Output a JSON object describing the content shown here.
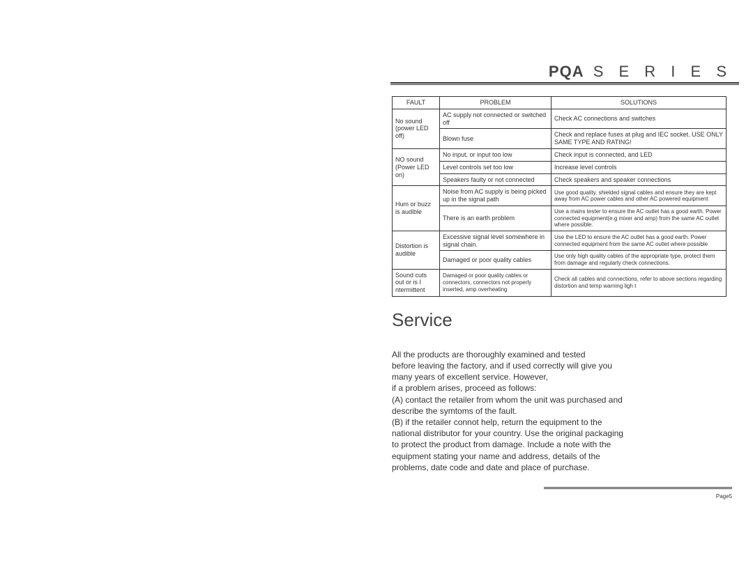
{
  "header": {
    "brand": "PQA",
    "series": "S E R I E S"
  },
  "table": {
    "headers": {
      "fault": "FAULT",
      "problem": "PROBLEM",
      "solutions": "SOLUTIONS"
    },
    "r1": {
      "fault": "No sound (power LED off)",
      "p1": "AC supply not connected or switched off",
      "s1": "Check AC connections and switches",
      "p2": "Blown fuse",
      "s2": "Check and replace fuses at plug and IEC socket. USE ONLY SAME TYPE AND RATING!"
    },
    "r2": {
      "fault": "NO sound (Power LED on)",
      "p1": "No input, or input too low",
      "s1": "Check input is connected, and LED",
      "p2": "Level controls set too low",
      "s2": "Increase level controls",
      "p3": "Speakers faulty or not connected",
      "s3": "Check speakers and speaker connections"
    },
    "r3": {
      "fault": "Hum or buzz is audible",
      "p1": "Noise from AC supply is being picked up in the signal path",
      "s1": "Use good quality, shielded signal cables and ensure they are kept away from AC power cables and other AC powered equipment",
      "p2": "There is an earth problem",
      "s2": "Use a mains tester to ensure the AC outlet has a good earth. Power connected equipment(e.g mixer and amp) from the same AC outlet where possible."
    },
    "r4": {
      "fault": "Distortion is audible",
      "p1": "Excessive signal level somewhere in signal chain.",
      "s1": "Use the LED to ensure the AC outlet has a good earth. Power connected equipment from the same AC outlet where possible",
      "p2": "Damaged or poor quality cables",
      "s2": "Use only high quality cables of the appropriate type, protect them from damage and regularly check connections."
    },
    "r5": {
      "fault": "Sound cuts out or is I ntermittent",
      "p1": "Damaged or poor quality cables or connectors, connectors not properly inserted, amp overheating",
      "s1": "Check all cables and connections, refer to above sections regarding distortion and temp warning ligh t"
    }
  },
  "service": {
    "title": "Service",
    "body": "All the products are thoroughly examined and tested\nbefore leaving the factory, and if used correctly will give you\nmany years of excellent service. However,\nif a problem arises, proceed as follows:\n(A) contact the retailer from whom the unit was purchased and\ndescribe the symtoms of the fault.\n(B) if the retailer connot help, return the equipment to the\nnational distributor for your country. Use the original packaging\nto protect the product from damage. Include a note with the\nequipment stating your name and address, details of the\nproblems, date code and date and place of purchase."
  },
  "footer": {
    "page": "Page5"
  }
}
